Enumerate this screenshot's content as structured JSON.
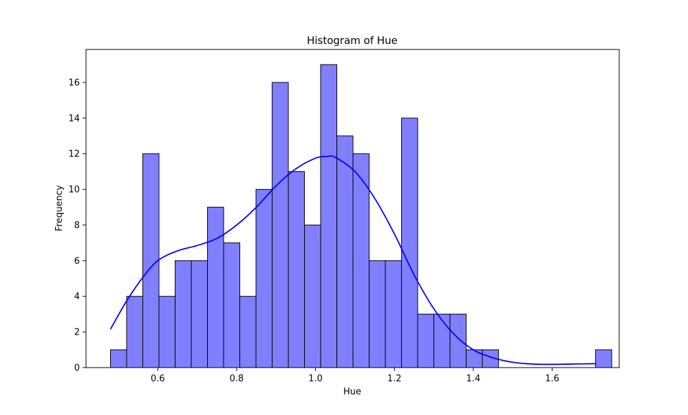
{
  "chart_data": {
    "type": "bar",
    "title": "Histogram of Hue",
    "xlabel": "Hue",
    "ylabel": "Frequency",
    "xlim": [
      0.418,
      1.77
    ],
    "ylim": [
      0,
      17.85
    ],
    "xticks": [
      0.6,
      0.8,
      1.0,
      1.2,
      1.4,
      1.6
    ],
    "xtick_labels": [
      "0.6",
      "0.8",
      "1.0",
      "1.2",
      "1.4",
      "1.6"
    ],
    "yticks": [
      0,
      2,
      4,
      6,
      8,
      10,
      12,
      14,
      16
    ],
    "ytick_labels": [
      "0",
      "2",
      "4",
      "6",
      "8",
      "10",
      "12",
      "14",
      "16"
    ],
    "bin_start": 0.48,
    "bin_width": 0.041,
    "values": [
      1,
      4,
      12,
      4,
      6,
      6,
      9,
      7,
      4,
      10,
      16,
      11,
      8,
      17,
      13,
      12,
      6,
      6,
      14,
      3,
      3,
      3,
      1,
      1,
      0,
      0,
      0,
      0,
      0,
      0,
      1
    ],
    "kde": {
      "x": [
        0.48,
        0.52,
        0.56,
        0.6,
        0.65,
        0.7,
        0.75,
        0.8,
        0.85,
        0.9,
        0.95,
        1.0,
        1.03,
        1.05,
        1.1,
        1.15,
        1.2,
        1.25,
        1.3,
        1.35,
        1.4,
        1.45,
        1.5,
        1.55,
        1.6,
        1.65,
        1.71
      ],
      "y": [
        2.15,
        3.7,
        5.0,
        6.0,
        6.55,
        6.85,
        7.25,
        8.0,
        9.0,
        10.2,
        11.15,
        11.75,
        11.85,
        11.8,
        11.0,
        9.5,
        7.5,
        5.2,
        3.3,
        1.9,
        1.0,
        0.55,
        0.3,
        0.2,
        0.18,
        0.2,
        0.22
      ]
    },
    "legend": "none",
    "grid": false,
    "colors": {
      "bar_fill": "#8080ff",
      "bar_edge": "#000000",
      "kde_line": "#0000ff"
    }
  }
}
